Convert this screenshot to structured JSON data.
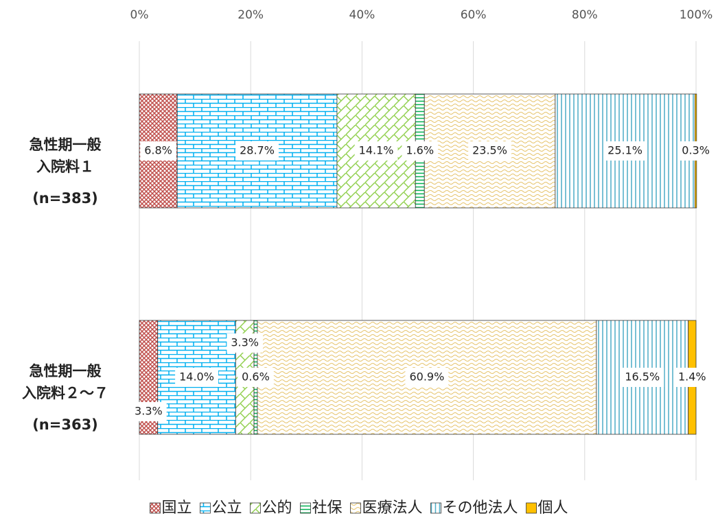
{
  "chart_data": {
    "type": "stacked-barh",
    "categories": [
      [
        "急性期一般",
        "入院料１",
        "(n=383)"
      ],
      [
        "急性期一般",
        "入院料２～７",
        "(n=363)"
      ]
    ],
    "series": [
      {
        "name": "国立",
        "color": "#c0504d",
        "pattern": "diag",
        "values": [
          6.8,
          3.3
        ],
        "value_labels": [
          "6.8%",
          "3.3%"
        ]
      },
      {
        "name": "公立",
        "color": "#00b0f0",
        "pattern": "brick",
        "values": [
          28.7,
          14.0
        ],
        "value_labels": [
          "28.7%",
          "14.0%"
        ]
      },
      {
        "name": "公的",
        "color": "#92d050",
        "pattern": "lattice",
        "values": [
          14.1,
          3.3
        ],
        "value_labels": [
          "14.1%",
          "3.3%"
        ]
      },
      {
        "name": "社保",
        "color": "#00b050",
        "pattern": "hbar",
        "values": [
          1.6,
          0.6
        ],
        "value_labels": [
          "1.6%",
          "0.6%"
        ]
      },
      {
        "name": "医療法人",
        "color": "#e6c36a",
        "pattern": "wave",
        "values": [
          23.5,
          60.9
        ],
        "value_labels": [
          "23.5%",
          "60.9%"
        ]
      },
      {
        "name": "その他法人",
        "color": "#4bacc6",
        "pattern": "vbar",
        "values": [
          25.1,
          16.5
        ],
        "value_labels": [
          "25.1%",
          "16.5%"
        ]
      },
      {
        "name": "個人",
        "color": "#ffc000",
        "pattern": "solid",
        "values": [
          0.3,
          1.4
        ],
        "value_labels": [
          "0.3%",
          "1.4%"
        ]
      }
    ],
    "xlim": [
      0,
      100
    ],
    "xticks": [
      {
        "value": 0,
        "label": "0%"
      },
      {
        "value": 20,
        "label": "20%"
      },
      {
        "value": 40,
        "label": "40%"
      },
      {
        "value": 60,
        "label": "60%"
      },
      {
        "value": 80,
        "label": "80%"
      },
      {
        "value": 100,
        "label": "100%"
      }
    ],
    "grid": true,
    "legend": "bottom"
  }
}
